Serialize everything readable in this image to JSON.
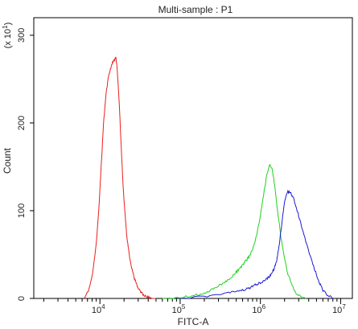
{
  "chart_data": {
    "type": "line",
    "title": "Multi-sample : P1",
    "xlabel": "FITC-A",
    "ylabel": "Count",
    "y_multiplier": "(x 10",
    "y_multiplier_exp": "1",
    "y_multiplier_close": ")",
    "x_scale": "log",
    "xlim": [
      1500,
      14000000
    ],
    "ylim": [
      0,
      320
    ],
    "x_ticks": [
      {
        "value": 10000,
        "base": "10",
        "exp": "4"
      },
      {
        "value": 100000,
        "base": "10",
        "exp": "5"
      },
      {
        "value": 1000000,
        "base": "10",
        "exp": "6"
      },
      {
        "value": 10000000,
        "base": "10",
        "exp": "7"
      }
    ],
    "y_ticks": [
      {
        "value": 0,
        "label": "0"
      },
      {
        "value": 100,
        "label": "100"
      },
      {
        "value": 200,
        "label": "200"
      },
      {
        "value": 300,
        "label": "300"
      }
    ],
    "grid": false,
    "legend": "none",
    "series": [
      {
        "color": "#e8201c",
        "x": [
          6300,
          7200,
          8100,
          9000,
          9800,
          10500,
          11200,
          12000,
          12800,
          13500,
          14200,
          15000,
          15800,
          16300,
          17000,
          17800,
          18600,
          19500,
          20500,
          21500,
          22500,
          23800,
          25000,
          26500,
          28000,
          30000,
          32000,
          34000,
          36500,
          39000,
          42000,
          45000,
          50000
        ],
        "y": [
          0,
          8,
          28,
          62,
          108,
          160,
          205,
          235,
          253,
          262,
          268,
          272,
          274,
          265,
          240,
          205,
          165,
          126,
          98,
          74,
          58,
          44,
          34,
          25,
          18,
          12,
          8,
          5,
          3,
          2,
          1,
          0,
          0
        ]
      },
      {
        "color": "#1fd21f",
        "x": [
          60000,
          100000,
          150000,
          200000,
          250000,
          300000,
          350000,
          400000,
          450000,
          500000,
          550000,
          600000,
          650000,
          700000,
          750000,
          800000,
          900000,
          1000000,
          1100000,
          1200000,
          1300000,
          1400000,
          1500000,
          1600000,
          1700000,
          1800000,
          2000000,
          2200000,
          2500000,
          2800000,
          3200000,
          3700000
        ],
        "y": [
          0,
          1,
          3,
          6,
          10,
          14,
          18,
          22,
          26,
          30,
          34,
          38,
          42,
          46,
          50,
          56,
          72,
          95,
          120,
          140,
          152,
          148,
          130,
          108,
          88,
          70,
          45,
          28,
          14,
          6,
          2,
          0
        ]
      },
      {
        "color": "#1c1cd2",
        "x": [
          100000,
          200000,
          300000,
          400000,
          500000,
          600000,
          700000,
          800000,
          900000,
          1000000,
          1100000,
          1200000,
          1300000,
          1400000,
          1500000,
          1600000,
          1700000,
          1800000,
          1900000,
          2000000,
          2200000,
          2400000,
          2600000,
          2800000,
          3000000,
          3300000,
          3600000,
          4000000,
          4500000,
          5000000,
          5500000,
          6000000,
          7000000,
          8000000
        ],
        "y": [
          0,
          2,
          4,
          6,
          8,
          9,
          11,
          14,
          16,
          18,
          20,
          22,
          25,
          29,
          35,
          44,
          58,
          76,
          94,
          110,
          122,
          120,
          113,
          104,
          94,
          80,
          68,
          54,
          39,
          27,
          17,
          9,
          3,
          0
        ]
      }
    ]
  }
}
